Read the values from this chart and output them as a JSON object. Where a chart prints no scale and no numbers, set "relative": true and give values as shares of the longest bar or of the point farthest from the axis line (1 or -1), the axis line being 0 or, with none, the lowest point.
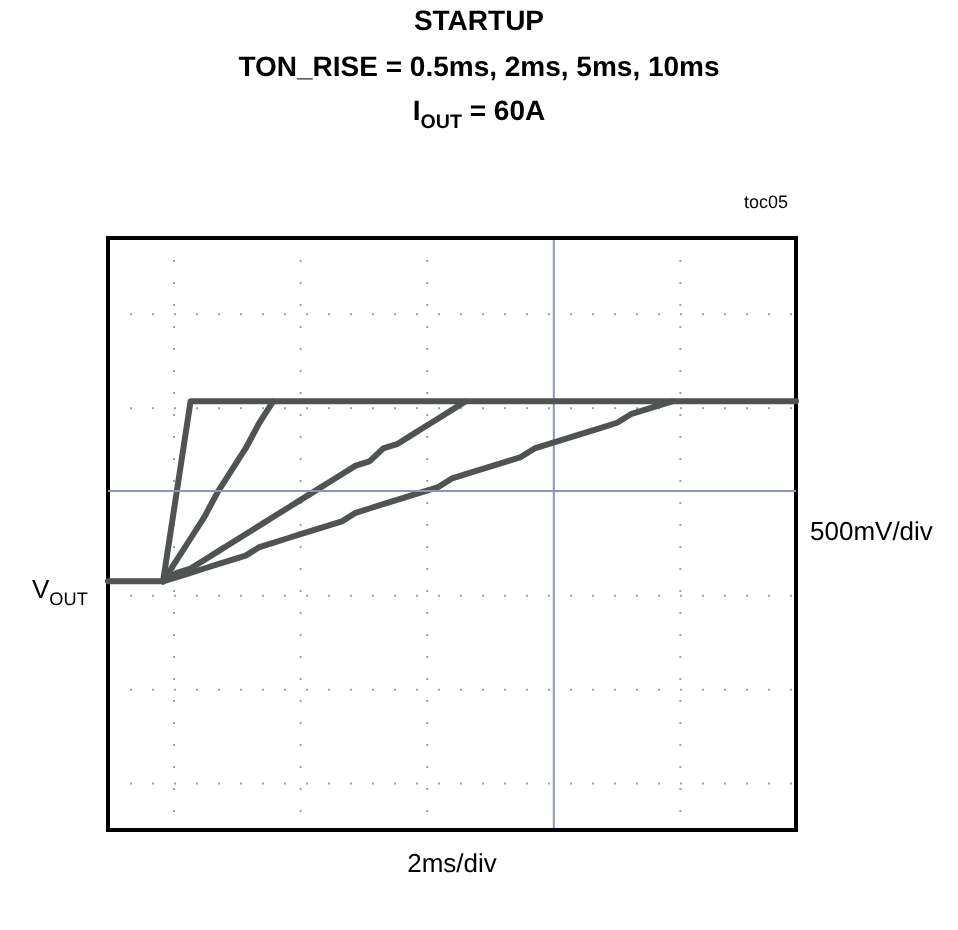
{
  "chart_data": {
    "type": "line",
    "title": "STARTUP",
    "subtitle": "TON_RISE = 0.5ms, 2ms, 5ms, 10ms\nI$_{OUT}$ = 60A",
    "annotations": [
      "toc05",
      "V$_{OUT}$",
      "500mV/div",
      "2ms/div"
    ],
    "relative": true,
    "grid": true,
    "line_style": "solid",
    "ref_lines": [
      {
        "axis": "y",
        "value": 0.79,
        "color": "#8d97b5"
      }
    ],
    "categories": [
      null,
      null,
      null,
      null,
      null,
      null,
      null,
      null,
      null,
      null,
      null,
      null,
      null,
      null,
      null,
      null,
      null,
      null,
      null,
      null,
      null,
      null,
      null,
      null,
      null,
      null,
      null,
      null,
      null,
      null,
      null,
      null,
      null,
      null,
      null,
      null,
      null,
      null,
      null,
      null,
      null,
      null,
      null,
      null,
      null,
      null,
      null,
      null,
      null,
      null,
      null
    ],
    "series": [
      {
        "color": "#4f5450",
        "values": [
          null,
          null,
          null,
          null,
          0.58,
          0.79,
          1,
          1,
          1,
          1,
          1,
          1,
          1,
          1,
          1,
          1,
          1,
          1,
          1,
          1,
          1,
          1,
          1,
          1,
          1,
          1,
          1,
          1,
          1,
          1,
          1,
          1,
          1,
          1,
          1,
          1,
          1,
          1,
          1,
          1,
          1,
          1,
          1,
          1,
          1,
          1,
          1,
          1,
          1,
          1,
          1
        ]
      },
      {
        "color": "#4f5450",
        "values": [
          null,
          null,
          null,
          null,
          0.58,
          0.63,
          0.68,
          0.73,
          0.79,
          0.84,
          0.89,
          0.95,
          1,
          null,
          null,
          null,
          null,
          null,
          null,
          null,
          null,
          null,
          null,
          null,
          null,
          null,
          null,
          null,
          null,
          null,
          null,
          null,
          null,
          null,
          null,
          null,
          null,
          null,
          null,
          null,
          null,
          null,
          null,
          null,
          null,
          null,
          null,
          null,
          null,
          null,
          null
        ]
      },
      {
        "color": "#4f5450",
        "values": [
          null,
          null,
          null,
          null,
          0.58,
          0.6,
          0.61,
          0.63,
          0.65,
          0.67,
          0.69,
          0.71,
          0.73,
          0.75,
          0.77,
          0.79,
          0.81,
          0.83,
          0.85,
          0.86,
          0.89,
          0.9,
          0.92,
          0.94,
          0.96,
          0.98,
          1,
          null,
          null,
          null,
          null,
          null,
          null,
          null,
          null,
          null,
          null,
          null,
          null,
          null,
          null,
          null,
          null,
          null,
          null,
          null,
          null,
          null,
          null,
          null,
          null
        ]
      },
      {
        "color": "#4f5450",
        "values": [
          0.58,
          0.58,
          0.58,
          0.58,
          0.58,
          0.59,
          0.6,
          0.61,
          0.62,
          0.63,
          0.64,
          0.66,
          0.67,
          0.68,
          0.69,
          0.7,
          0.71,
          0.72,
          0.74,
          0.75,
          0.76,
          0.77,
          0.78,
          0.79,
          0.8,
          0.82,
          0.83,
          0.84,
          0.85,
          0.86,
          0.87,
          0.89,
          0.9,
          0.91,
          0.92,
          0.93,
          0.94,
          0.95,
          0.97,
          0.98,
          0.99,
          1,
          null,
          null,
          null,
          null,
          null,
          null,
          null,
          null,
          null
        ]
      }
    ]
  }
}
